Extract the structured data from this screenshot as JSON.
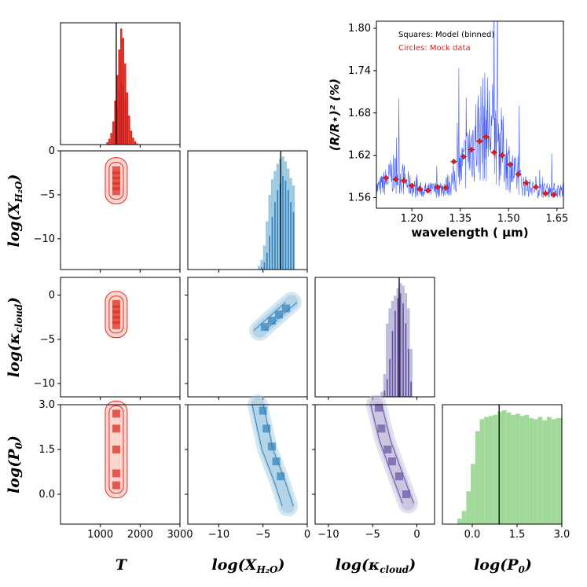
{
  "colors": {
    "T": "#de2d26",
    "T_light": "#f6b4a5",
    "H2O": "#3182bd",
    "H2O_light": "#9ecae1",
    "cloud": "#6a51a3",
    "cloud_light": "#bcbddc",
    "P0": "#a1d99b",
    "model_line": "#1f3cff",
    "mock_points": "#e31a1c",
    "truth": "#000000"
  },
  "labels": {
    "T": "T",
    "H2O": "log(X_H2O)",
    "cloud": "log(κ_cloud)",
    "P0": "log(P_0)"
  },
  "chart_data": [
    {
      "type": "histogram",
      "param": "T",
      "panel": "T-marginal",
      "range": [
        0,
        3000
      ],
      "bins": 60,
      "truth": 1400,
      "values": [
        0,
        0,
        0,
        0,
        0,
        0,
        0,
        0,
        0,
        0,
        0,
        0,
        0,
        0,
        0,
        0,
        0,
        0,
        0,
        0,
        0,
        0,
        0,
        2,
        5,
        10,
        20,
        38,
        60,
        82,
        100,
        92,
        70,
        45,
        25,
        12,
        6,
        3,
        1,
        0,
        0,
        0,
        0,
        0,
        0,
        0,
        0,
        0,
        0,
        0,
        0,
        0,
        0,
        0,
        0,
        0,
        0,
        0,
        0,
        0
      ]
    },
    {
      "type": "histogram",
      "param": "log(X_H2O)",
      "panel": "H2O-marginal",
      "range": [
        -13.5,
        0
      ],
      "truth": -3.0,
      "bin_edges": [
        -5.6,
        -5.3,
        -5.0,
        -4.7,
        -4.4,
        -4.1,
        -3.8,
        -3.5,
        -3.2,
        -2.9,
        -2.6,
        -2.3,
        -2.0,
        -1.7,
        -1.4
      ],
      "values": [
        3,
        8,
        20,
        40,
        62,
        75,
        82,
        88,
        92,
        94,
        90,
        84,
        76,
        70
      ],
      "values_overlay": [
        0,
        2,
        6,
        14,
        28,
        44,
        56,
        66,
        72,
        78,
        74,
        66,
        56,
        48
      ]
    },
    {
      "type": "histogram",
      "param": "log(κ_cloud)",
      "panel": "cloud-marginal",
      "range": [
        -11.5,
        2
      ],
      "truth": -2.0,
      "bin_edges": [
        -4.1,
        -3.8,
        -3.5,
        -3.2,
        -2.9,
        -2.6,
        -2.3,
        -2.0,
        -1.7,
        -1.4,
        -1.1,
        -0.8
      ],
      "values": [
        4,
        18,
        58,
        70,
        76,
        80,
        86,
        90,
        88,
        82,
        70,
        38
      ],
      "values_overlay": [
        0,
        5,
        14,
        30,
        52,
        68,
        78,
        82,
        74,
        58,
        38,
        12
      ]
    },
    {
      "type": "histogram",
      "param": "log(P_0)",
      "panel": "P0-marginal",
      "range": [
        -1,
        3
      ],
      "truth": 0.9,
      "bin_edges": [
        -0.5,
        -0.35,
        -0.2,
        -0.05,
        0.1,
        0.25,
        0.4,
        0.55,
        0.7,
        0.85,
        1.0,
        1.15,
        1.3,
        1.45,
        1.6,
        1.75,
        1.9,
        2.05,
        2.2,
        2.35,
        2.5,
        2.65,
        2.8,
        2.95,
        3.0
      ],
      "values": [
        5,
        12,
        30,
        55,
        85,
        96,
        98,
        99,
        100,
        103,
        104,
        102,
        100,
        101,
        99,
        100,
        97,
        96,
        98,
        95,
        98,
        96,
        97,
        97
      ]
    },
    {
      "type": "corner-scatter",
      "panel": "H2O-vs-T",
      "x": "T",
      "y": "log(X_H2O)",
      "xlim": [
        0,
        3000
      ],
      "ylim": [
        -13.5,
        0
      ],
      "contour_sigma_x": [
        120,
        240
      ],
      "contour_sigma_y": [
        0.8,
        1.5
      ],
      "center": [
        1400,
        -3.6
      ],
      "bins": [
        [
          1400,
          -2.2
        ],
        [
          1400,
          -2.8
        ],
        [
          1400,
          -3.4
        ],
        [
          1400,
          -4.0
        ],
        [
          1400,
          -4.6
        ]
      ]
    },
    {
      "type": "corner-scatter",
      "panel": "cloud-vs-T",
      "x": "T",
      "y": "log(κ_cloud)",
      "xlim": [
        0,
        3000
      ],
      "ylim": [
        -11.5,
        2
      ],
      "center": [
        1400,
        -2.2
      ],
      "bins": [
        [
          1400,
          -1.0
        ],
        [
          1400,
          -1.6
        ],
        [
          1400,
          -2.2
        ],
        [
          1400,
          -2.8
        ],
        [
          1400,
          -3.4
        ]
      ]
    },
    {
      "type": "corner-scatter",
      "panel": "cloud-vs-H2O",
      "x": "log(X_H2O)",
      "y": "log(κ_cloud)",
      "xlim": [
        -13.5,
        0
      ],
      "ylim": [
        -11.5,
        2
      ],
      "ridge": [
        [
          -5.4,
          -4.0
        ],
        [
          -1.8,
          -0.8
        ]
      ],
      "bins": [
        [
          -4.8,
          -3.6
        ],
        [
          -4.0,
          -2.9
        ],
        [
          -3.2,
          -2.2
        ],
        [
          -2.4,
          -1.5
        ]
      ]
    },
    {
      "type": "corner-scatter",
      "panel": "P0-vs-T",
      "x": "T",
      "y": "log(P_0)",
      "xlim": [
        0,
        3000
      ],
      "ylim": [
        -1,
        3
      ],
      "center": [
        1400,
        1.5
      ],
      "bins": [
        [
          1400,
          0.3
        ],
        [
          1400,
          0.7
        ],
        [
          1400,
          1.5
        ],
        [
          1400,
          2.2
        ],
        [
          1400,
          2.7
        ]
      ]
    },
    {
      "type": "corner-scatter",
      "panel": "P0-vs-H2O",
      "x": "log(X_H2O)",
      "y": "log(P_0)",
      "xlim": [
        -13.5,
        0
      ],
      "ylim": [
        -1,
        3
      ],
      "ridge": [
        [
          -5.6,
          3.0
        ],
        [
          -4.5,
          1.5
        ],
        [
          -3.2,
          0.5
        ],
        [
          -2.2,
          -0.4
        ]
      ],
      "bins": [
        [
          -5.0,
          2.8
        ],
        [
          -4.6,
          2.2
        ],
        [
          -4.0,
          1.6
        ],
        [
          -3.5,
          1.1
        ],
        [
          -3.0,
          0.6
        ]
      ]
    },
    {
      "type": "corner-scatter",
      "panel": "P0-vs-cloud",
      "x": "log(κ_cloud)",
      "y": "log(P_0)",
      "xlim": [
        -11.5,
        2
      ],
      "ylim": [
        -1,
        3
      ],
      "ridge": [
        [
          -4.6,
          3.0
        ],
        [
          -3.6,
          1.8
        ],
        [
          -2.5,
          0.9
        ],
        [
          -1.0,
          -0.3
        ]
      ],
      "bins": [
        [
          -4.3,
          2.9
        ],
        [
          -4.0,
          2.2
        ],
        [
          -3.3,
          1.5
        ],
        [
          -2.8,
          1.1
        ],
        [
          -2.0,
          0.6
        ],
        [
          -1.2,
          0.0
        ]
      ]
    },
    {
      "type": "line+scatter",
      "panel": "spectrum-inset",
      "title": "",
      "xlabel": "wavelength ( μm)",
      "ylabel": "(R/R⋆)² (%)",
      "xlim": [
        1.09,
        1.67
      ],
      "ylim": [
        1.545,
        1.81
      ],
      "xticks": [
        1.2,
        1.35,
        1.5,
        1.65
      ],
      "yticks": [
        1.56,
        1.62,
        1.68,
        1.74,
        1.8
      ],
      "legend": [
        "Squares: Model (binned)",
        "Circles: Mock data"
      ],
      "mock_data": {
        "wavelength": [
          1.12,
          1.15,
          1.175,
          1.2,
          1.225,
          1.25,
          1.28,
          1.305,
          1.33,
          1.36,
          1.385,
          1.41,
          1.43,
          1.455,
          1.48,
          1.505,
          1.53,
          1.555,
          1.585,
          1.615,
          1.64
        ],
        "value": [
          1.588,
          1.586,
          1.584,
          1.577,
          1.572,
          1.57,
          1.575,
          1.574,
          1.611,
          1.618,
          1.628,
          1.64,
          1.646,
          1.624,
          1.62,
          1.607,
          1.593,
          1.581,
          1.575,
          1.566,
          1.564
        ],
        "error": [
          0.004,
          0.004,
          0.004,
          0.004,
          0.004,
          0.004,
          0.004,
          0.004,
          0.004,
          0.004,
          0.004,
          0.004,
          0.004,
          0.004,
          0.004,
          0.004,
          0.004,
          0.004,
          0.004,
          0.004,
          0.004
        ]
      }
    }
  ]
}
